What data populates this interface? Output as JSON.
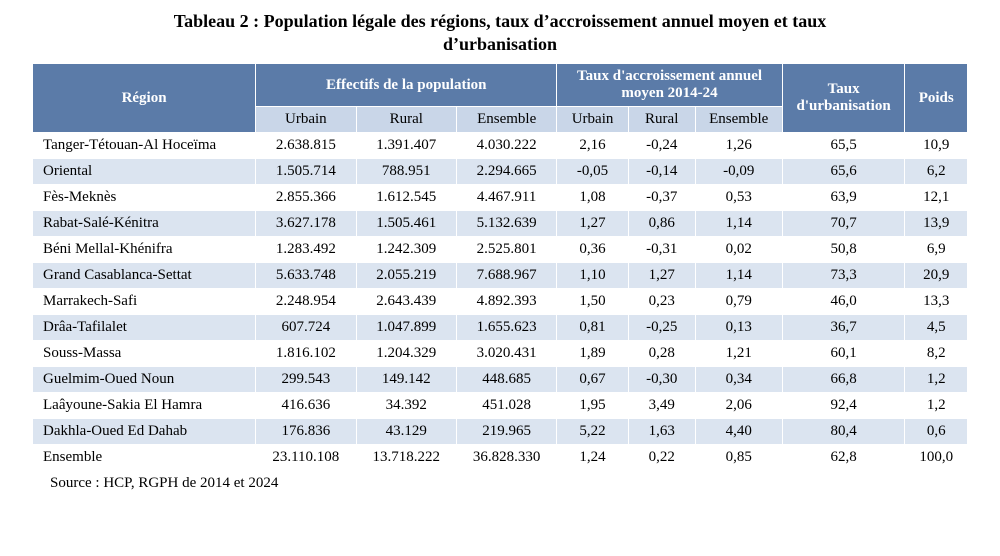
{
  "title_line1": "Tableau 2 : Population légale des régions, taux d’accroissement annuel moyen et taux",
  "title_line2": "d’urbanisation",
  "colors": {
    "header_bg": "#5b7ba8",
    "header_fg": "#ffffff",
    "subhead_bg": "#c9d6e8",
    "row_even_bg": "#dbe4f0",
    "row_odd_bg": "#ffffff",
    "border": "#ffffff"
  },
  "headers": {
    "region": "Région",
    "effectifs": "Effectifs de la population",
    "growth": "Taux d'accroissement annuel moyen 2014-24",
    "urbanisation": "Taux d'urbanisation",
    "poids": "Poids",
    "sub": {
      "urbain": "Urbain",
      "rural": "Rural",
      "ensemble": "Ensemble"
    }
  },
  "rows": [
    {
      "region": "Tanger-Tétouan-Al Hoceïma",
      "urb": "2.638.815",
      "rur": "1.391.407",
      "ens": "4.030.222",
      "gurb": "2,16",
      "grur": "-0,24",
      "gens": "1,26",
      "urbrate": "65,5",
      "poids": "10,9"
    },
    {
      "region": "Oriental",
      "urb": "1.505.714",
      "rur": "788.951",
      "ens": "2.294.665",
      "gurb": "-0,05",
      "grur": "-0,14",
      "gens": "-0,09",
      "urbrate": "65,6",
      "poids": "6,2"
    },
    {
      "region": "Fès-Meknès",
      "urb": "2.855.366",
      "rur": "1.612.545",
      "ens": "4.467.911",
      "gurb": "1,08",
      "grur": "-0,37",
      "gens": "0,53",
      "urbrate": "63,9",
      "poids": "12,1"
    },
    {
      "region": "Rabat-Salé-Kénitra",
      "urb": "3.627.178",
      "rur": "1.505.461",
      "ens": "5.132.639",
      "gurb": "1,27",
      "grur": "0,86",
      "gens": "1,14",
      "urbrate": "70,7",
      "poids": "13,9"
    },
    {
      "region": "Béni Mellal-Khénifra",
      "urb": "1.283.492",
      "rur": "1.242.309",
      "ens": "2.525.801",
      "gurb": "0,36",
      "grur": "-0,31",
      "gens": "0,02",
      "urbrate": "50,8",
      "poids": "6,9"
    },
    {
      "region": "Grand Casablanca-Settat",
      "urb": "5.633.748",
      "rur": "2.055.219",
      "ens": "7.688.967",
      "gurb": "1,10",
      "grur": "1,27",
      "gens": "1,14",
      "urbrate": "73,3",
      "poids": "20,9"
    },
    {
      "region": "Marrakech-Safi",
      "urb": "2.248.954",
      "rur": "2.643.439",
      "ens": "4.892.393",
      "gurb": "1,50",
      "grur": "0,23",
      "gens": "0,79",
      "urbrate": "46,0",
      "poids": "13,3"
    },
    {
      "region": "Drâa-Tafilalet",
      "urb": "607.724",
      "rur": "1.047.899",
      "ens": "1.655.623",
      "gurb": "0,81",
      "grur": "-0,25",
      "gens": "0,13",
      "urbrate": "36,7",
      "poids": "4,5"
    },
    {
      "region": "Souss-Massa",
      "urb": "1.816.102",
      "rur": "1.204.329",
      "ens": "3.020.431",
      "gurb": "1,89",
      "grur": "0,28",
      "gens": "1,21",
      "urbrate": "60,1",
      "poids": "8,2"
    },
    {
      "region": "Guelmim-Oued Noun",
      "urb": "299.543",
      "rur": "149.142",
      "ens": "448.685",
      "gurb": "0,67",
      "grur": "-0,30",
      "gens": "0,34",
      "urbrate": "66,8",
      "poids": "1,2"
    },
    {
      "region": "Laâyoune-Sakia El Hamra",
      "urb": "416.636",
      "rur": "34.392",
      "ens": "451.028",
      "gurb": "1,95",
      "grur": "3,49",
      "gens": "2,06",
      "urbrate": "92,4",
      "poids": "1,2"
    },
    {
      "region": "Dakhla-Oued Ed Dahab",
      "urb": "176.836",
      "rur": "43.129",
      "ens": "219.965",
      "gurb": "5,22",
      "grur": "1,63",
      "gens": "4,40",
      "urbrate": "80,4",
      "poids": "0,6"
    },
    {
      "region": "Ensemble",
      "urb": "23.110.108",
      "rur": "13.718.222",
      "ens": "36.828.330",
      "gurb": "1,24",
      "grur": "0,22",
      "gens": "0,85",
      "urbrate": "62,8",
      "poids": "100,0"
    }
  ],
  "source": "Source : HCP, RGPH de 2014 et 2024"
}
